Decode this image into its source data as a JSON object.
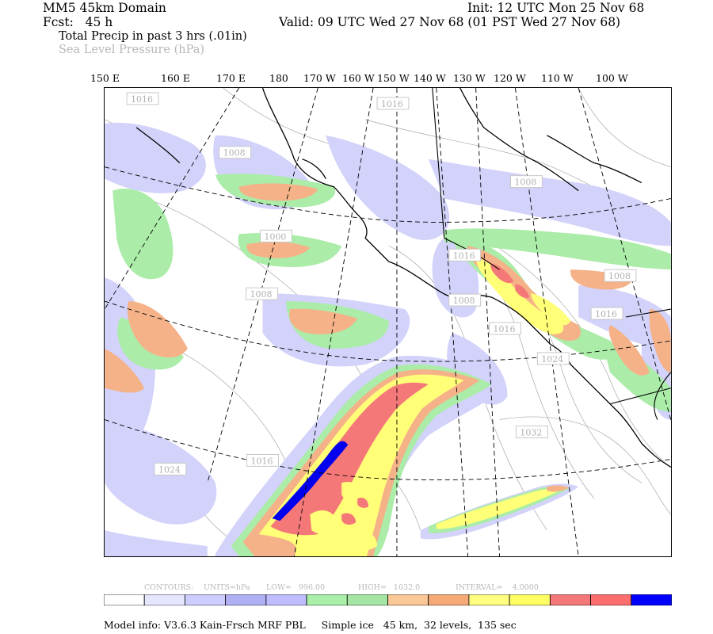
{
  "header": {
    "domain": "MM5 45km Domain",
    "fcst": "Fcst:   45 h",
    "init": "Init: 12 UTC Mon 25 Nov 68",
    "valid": "Valid: 09 UTC Wed 27 Nov 68 (01 PST Wed 27 Nov 68)",
    "field1": "Total Precip in past 3 hrs (.01in)",
    "field2": "Sea Level Pressure (hPa)"
  },
  "longitudes": [
    "150 E",
    "160 E",
    "170 E",
    "180",
    "170 W",
    "160 W",
    "150 W",
    "140 W",
    "130 W",
    "120 W",
    "110 W",
    "100 W"
  ],
  "isobar_labels": [
    "1016",
    "1008",
    "1000",
    "1008",
    "1016",
    "1024",
    "1016",
    "1008",
    "1016",
    "1008",
    "1016",
    "1008",
    "1016",
    "1024",
    "1032"
  ],
  "contours": {
    "contours_label": "CONTOURS:",
    "units": "UNITS=hPa",
    "low": "LOW=   996.00",
    "high": "HIGH=   1032.0",
    "interval": "INTERVAL=    4.0000"
  },
  "legend_colors": [
    "#ffffff",
    "#e6e6ff",
    "#cdcdff",
    "#b0b0f5",
    "#bebeff",
    "#aaf0aa",
    "#a5e6a5",
    "#fac896",
    "#f5aa78",
    "#ffff80",
    "#ffff64",
    "#f57878",
    "#ff6e6e",
    "#0000ff"
  ],
  "footer": {
    "model_info": "Model info: V3.6.3 Kain-Frsch MRF PBL     Simple ice   45 km,  32 levels,  135 sec"
  }
}
